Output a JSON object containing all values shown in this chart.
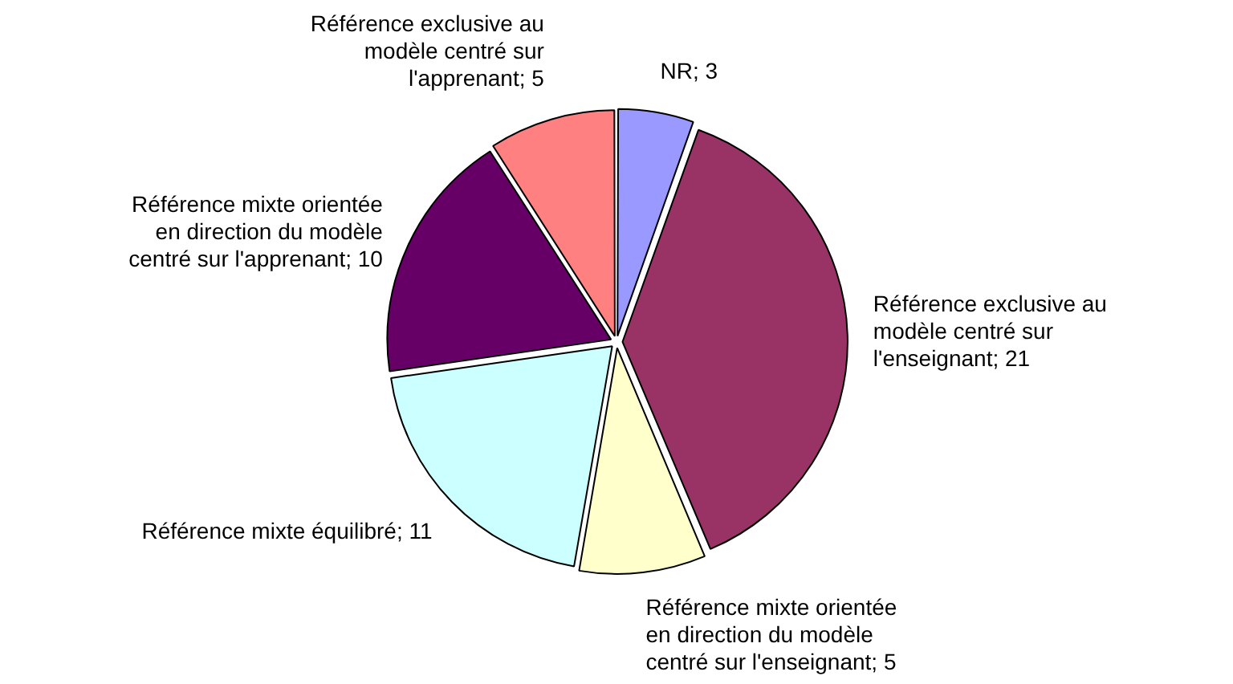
{
  "chart_data": {
    "type": "pie",
    "categories": [
      "NR",
      "Référence exclusive au modèle centré sur l'enseignant",
      "Référence mixte orientée en direction du modèle centré sur l'enseignant",
      "Référence mixte équilibré",
      "Référence mixte orientée en direction du modèle centré sur l'apprenant",
      "Référence exclusive au modèle centré sur l'apprenant"
    ],
    "values": [
      3,
      21,
      5,
      11,
      10,
      5
    ],
    "colors": [
      "#9999ff",
      "#993366",
      "#ffffcc",
      "#ccffff",
      "#660066",
      "#ff8080"
    ],
    "value_labels": [
      "; 3",
      "; 21",
      "; 5",
      "; 11",
      "; 10",
      "; 5"
    ],
    "legend": false
  }
}
